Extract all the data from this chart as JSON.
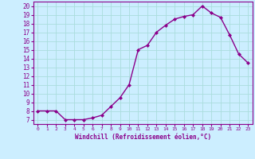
{
  "x": [
    0,
    1,
    2,
    3,
    4,
    5,
    6,
    7,
    8,
    9,
    10,
    11,
    12,
    13,
    14,
    15,
    16,
    17,
    18,
    19,
    20,
    21,
    22,
    23
  ],
  "y": [
    8,
    8,
    8,
    7,
    7,
    7,
    7.2,
    7.5,
    8.5,
    9.5,
    11,
    15,
    15.5,
    17,
    17.8,
    18.5,
    18.8,
    19,
    20,
    19.2,
    18.7,
    16.7,
    14.5,
    13.5
  ],
  "line_color": "#8b008b",
  "marker_color": "#8b008b",
  "bg_color": "#cceeff",
  "grid_color": "#aadddd",
  "xlabel": "Windchill (Refroidissement éolien,°C)",
  "xlabel_color": "#8b008b",
  "ylim": [
    6.5,
    20.5
  ],
  "xlim": [
    -0.5,
    23.5
  ],
  "yticks": [
    7,
    8,
    9,
    10,
    11,
    12,
    13,
    14,
    15,
    16,
    17,
    18,
    19,
    20
  ],
  "xticks": [
    0,
    1,
    2,
    3,
    4,
    5,
    6,
    7,
    8,
    9,
    10,
    11,
    12,
    13,
    14,
    15,
    16,
    17,
    18,
    19,
    20,
    21,
    22,
    23
  ],
  "tick_color": "#8b008b",
  "spine_color": "#8b008b"
}
